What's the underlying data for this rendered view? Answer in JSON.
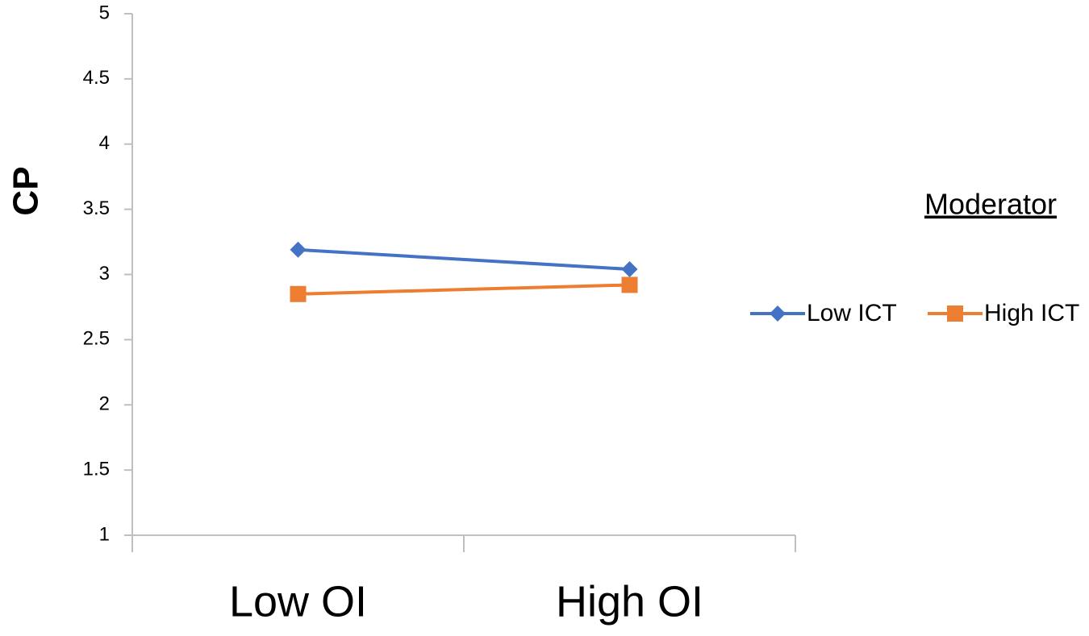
{
  "chart_data": {
    "type": "line",
    "y_label": "CP",
    "legend_title": "Moderator",
    "legend_position": "right",
    "categories": [
      "Low OI",
      "High OI"
    ],
    "series": [
      {
        "name": "Low ICT",
        "color": "#4472c4",
        "marker": "diamond",
        "values": [
          3.19,
          3.04
        ]
      },
      {
        "name": "High ICT",
        "color": "#ed7d31",
        "marker": "square",
        "values": [
          2.85,
          2.92
        ]
      }
    ],
    "ylim": [
      1,
      5
    ],
    "yticks": [
      1,
      1.5,
      2,
      2.5,
      3,
      3.5,
      4,
      4.5,
      5
    ],
    "grid": false
  }
}
